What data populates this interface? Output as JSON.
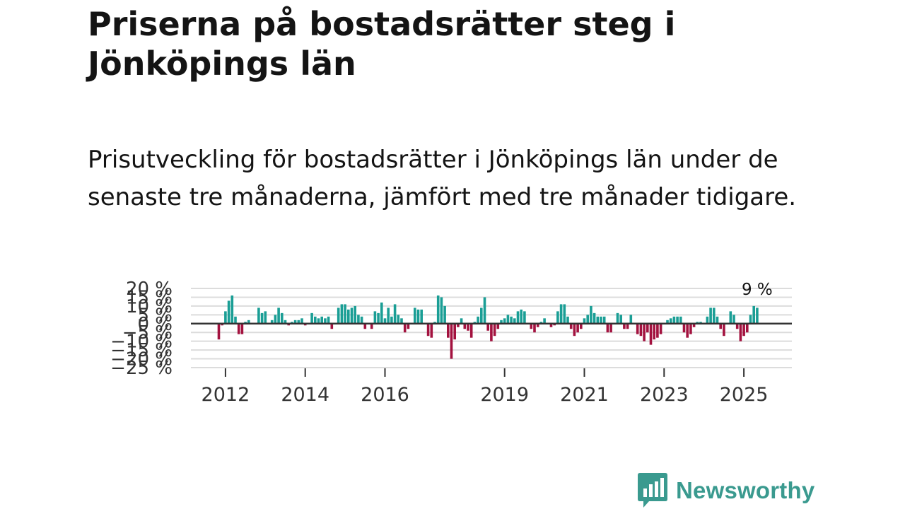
{
  "title": "Priserna på bostadsrätter steg i Jönköpings län",
  "subtitle": "Prisutveckling för bostadsrätter i Jönköpings län under de senaste tre månaderna, jämfört med tre månader tidigare.",
  "brand": {
    "name": "Newsworthy",
    "icon": "newsworthy-logo-icon",
    "color": "#3a9a8f"
  },
  "colors": {
    "positive": "#1a9e95",
    "negative": "#a3123f",
    "grid": "#dcdcdc",
    "zero_line": "#333333",
    "axis_text": "#333333"
  },
  "chart_data": {
    "type": "bar",
    "title": "Priserna på bostadsrätter steg i Jönköpings län",
    "ylabel": "",
    "xlabel": "",
    "ylim": [
      -25,
      20
    ],
    "y_ticks": [
      20,
      15,
      10,
      5,
      0,
      -5,
      -10,
      -15,
      -20,
      -25
    ],
    "y_tick_labels": [
      "20 %",
      "15 %",
      "10 %",
      "5 %",
      "0 %",
      "−5 %",
      "−10 %",
      "−15 %",
      "−20 %",
      "−25 %"
    ],
    "x_ticks": [
      "2012",
      "2014",
      "2016",
      "2019",
      "2021",
      "2023",
      "2025"
    ],
    "start": {
      "year": 2011,
      "month": 11
    },
    "annotation": {
      "text": "9 %",
      "target": "last"
    },
    "values": [
      -9,
      -1,
      7,
      13,
      16,
      4,
      -6,
      -6,
      1,
      2,
      0,
      0,
      9,
      6,
      7,
      0,
      2,
      5,
      9,
      6,
      2,
      -1,
      1,
      2,
      2,
      3,
      -1,
      0,
      6,
      4,
      3,
      4,
      3,
      4,
      -3,
      0,
      9,
      11,
      11,
      8,
      9,
      10,
      5,
      4,
      -3,
      0,
      -3,
      7,
      6,
      12,
      3,
      9,
      4,
      11,
      5,
      3,
      -5,
      -3,
      0,
      9,
      8,
      8,
      0,
      -7,
      -8,
      1,
      16,
      15,
      10,
      -8,
      -20,
      -9,
      -2,
      3,
      -3,
      -4,
      -8,
      1,
      4,
      9,
      15,
      -4,
      -10,
      -7,
      -3,
      2,
      3,
      5,
      4,
      3,
      7,
      8,
      7,
      0,
      -3,
      -5,
      -2,
      1,
      3,
      0,
      -2,
      -1,
      7,
      11,
      11,
      4,
      -3,
      -7,
      -5,
      -3,
      3,
      5,
      10,
      6,
      4,
      4,
      4,
      -5,
      -5,
      0,
      6,
      5,
      -3,
      -3,
      5,
      0,
      -6,
      -7,
      -10,
      -5,
      -12,
      -9,
      -8,
      -6,
      0,
      2,
      3,
      4,
      4,
      4,
      -5,
      -8,
      -6,
      -2,
      1,
      1,
      0,
      4,
      9,
      9,
      4,
      -3,
      -7,
      0,
      7,
      5,
      -3,
      -10,
      -7,
      -5,
      5,
      10,
      9
    ]
  }
}
